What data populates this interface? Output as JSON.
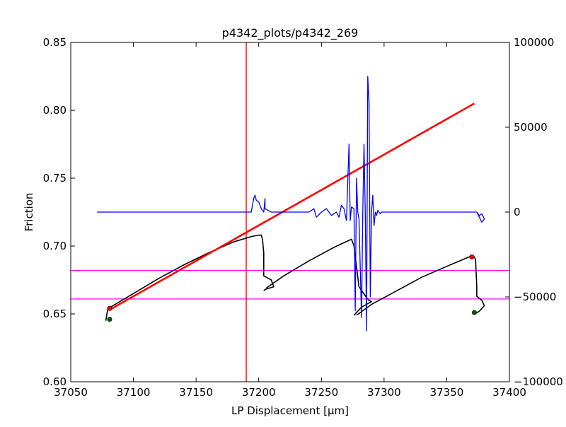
{
  "chart_data": {
    "type": "line",
    "title": "p4342_plots/p4342_269",
    "xlabel": "LP Displacement [μm]",
    "ylabel": "Friction",
    "xlim": [
      37050,
      37400
    ],
    "ylim": [
      0.6,
      0.85
    ],
    "y2lim": [
      -100000,
      100000
    ],
    "x_ticks": [
      37050,
      37100,
      37150,
      37200,
      37250,
      37300,
      37350,
      37400
    ],
    "y_ticks": [
      0.6,
      0.65,
      0.7,
      0.75,
      0.8,
      0.85
    ],
    "y2_ticks": [
      -100000,
      -50000,
      0,
      50000,
      100000
    ],
    "x_tick_labels": [
      "37050",
      "37100",
      "37150",
      "37200",
      "37250",
      "37300",
      "37350",
      "37400"
    ],
    "y_tick_labels": [
      "0.60",
      "0.65",
      "0.70",
      "0.75",
      "0.80",
      "0.85"
    ],
    "y2_tick_labels": [
      "−100000",
      "−50000",
      "0",
      "50000",
      "100000"
    ],
    "grid": false,
    "colors": {
      "friction": "#000000",
      "fit_line": "#ff0000",
      "vertical_marker": "#ff0000",
      "horizontal_markers": "#ff00ff",
      "secondary_series": "#0000ff",
      "start_markers": "#006400",
      "end_markers": "#ff0000"
    },
    "series": [
      {
        "axis": "left",
        "style": "line",
        "x": [
          37078,
          37079,
          37080,
          37100,
          37120,
          37140,
          37160,
          37180,
          37194,
          37200,
          37202,
          37203,
          37204,
          37204,
          37210,
          37212,
          37205,
          37204
        ],
        "y": [
          0.645,
          0.651,
          0.654,
          0.665,
          0.676,
          0.686,
          0.695,
          0.703,
          0.707,
          0.708,
          0.708,
          0.705,
          0.695,
          0.678,
          0.675,
          0.67,
          0.668,
          0.667
        ]
      },
      {
        "axis": "left",
        "style": "line",
        "x": [
          37206,
          37220,
          37240,
          37260,
          37274,
          37276,
          37278,
          37280,
          37286,
          37288,
          37290,
          37282,
          37276
        ],
        "y": [
          0.669,
          0.678,
          0.689,
          0.699,
          0.705,
          0.7,
          0.685,
          0.67,
          0.662,
          0.66,
          0.659,
          0.655,
          0.649
        ]
      },
      {
        "axis": "left",
        "style": "line",
        "x": [
          37278,
          37290,
          37310,
          37330,
          37350,
          37368,
          37372,
          37373,
          37374,
          37374,
          37378,
          37380,
          37376,
          37372
        ],
        "y": [
          0.649,
          0.657,
          0.667,
          0.677,
          0.685,
          0.692,
          0.692,
          0.69,
          0.67,
          0.663,
          0.66,
          0.656,
          0.652,
          0.65
        ]
      },
      {
        "axis": "left",
        "style": "line",
        "x": [
          37081,
          37372
        ],
        "y": [
          0.653,
          0.805
        ]
      },
      {
        "axis": "right",
        "style": "line",
        "x": [
          37071,
          37188,
          37194,
          37195,
          37196,
          37197,
          37198,
          37200,
          37202,
          37204,
          37205,
          37205,
          37210,
          37240,
          37244,
          37246,
          37250,
          37254,
          37258,
          37262,
          37264,
          37266,
          37268,
          37270,
          37272,
          37273,
          37274,
          37276,
          37277,
          37278,
          37279,
          37280,
          37282,
          37283,
          37284,
          37285,
          37286,
          37287,
          37288,
          37289,
          37290,
          37291,
          37292,
          37293,
          37294,
          37295,
          37296,
          37297,
          37298,
          37300,
          37304,
          37310,
          37372,
          37374,
          37376,
          37378,
          37380,
          37378,
          37376,
          37374
        ],
        "y": [
          0,
          0,
          0,
          4000,
          8000,
          10000,
          7000,
          6000,
          2000,
          0,
          8000,
          2000,
          0,
          0,
          2000,
          -3000,
          0,
          2000,
          -2000,
          0,
          -3000,
          4000,
          2000,
          -5000,
          40000,
          -5000,
          3000,
          2000,
          -58000,
          20000,
          0,
          -4000,
          -62000,
          -2000,
          40000,
          -1000,
          -70000,
          80000,
          65000,
          -50000,
          0,
          10000,
          -8000,
          0,
          -2000,
          1000,
          0,
          -1000,
          0,
          0,
          0,
          0,
          0,
          0,
          -3000,
          -6000,
          -4000,
          -1000,
          -2000,
          0
        ]
      }
    ],
    "vertical_lines": [
      37190
    ],
    "horizontal_lines": [
      0.682,
      0.661
    ],
    "markers": [
      {
        "role": "start",
        "x": 37081,
        "y": 0.646
      },
      {
        "role": "start",
        "x": 37372,
        "y": 0.651
      },
      {
        "role": "end",
        "x": 37081,
        "y": 0.654
      },
      {
        "role": "end",
        "x": 37370,
        "y": 0.692
      }
    ]
  }
}
